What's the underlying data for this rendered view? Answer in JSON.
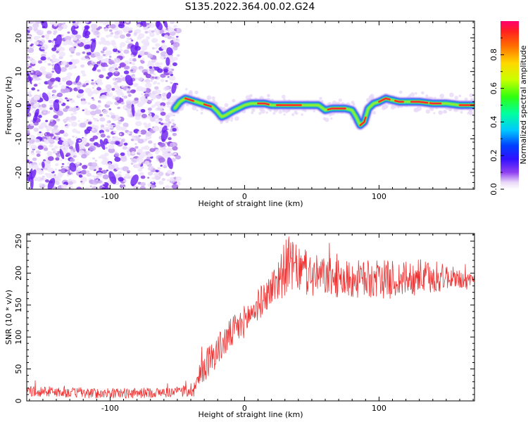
{
  "title": "S135.2022.364.00.02.G24",
  "chart_data": [
    {
      "type": "heatmap",
      "xlabel": "Height of straight line (km)",
      "ylabel": "Frequency (Hz)",
      "xlim": [
        -162,
        171
      ],
      "ylim": [
        -25,
        25
      ],
      "xticks": [
        -100,
        0,
        100
      ],
      "yticks": [
        -20,
        -10,
        0,
        10,
        20
      ],
      "grid": false,
      "colorbar": {
        "label": "Normalized spectral amplitude",
        "range": [
          0,
          1
        ],
        "ticks": [
          0.0,
          0.2,
          0.4,
          0.6,
          0.8
        ]
      },
      "noise_region_x": [
        -162,
        -52
      ],
      "ridge": {
        "x": [
          -52,
          -48,
          -44,
          -40,
          -36,
          -32,
          -28,
          -24,
          -20,
          -17,
          -14,
          -10,
          -5,
          0,
          5,
          10,
          15,
          20,
          25,
          30,
          40,
          50,
          55,
          60,
          65,
          70,
          75,
          80,
          83,
          86,
          89,
          92,
          96,
          100,
          105,
          110,
          115,
          120,
          130,
          140,
          150,
          160,
          171
        ],
        "y": [
          -1,
          1,
          2,
          1.5,
          1,
          0.5,
          0,
          -0.5,
          -2,
          -3.5,
          -3,
          -2,
          -1,
          0,
          0.5,
          0.5,
          0.5,
          0,
          0,
          0,
          0,
          0,
          0,
          -1.5,
          -1,
          -1,
          -1,
          -1.5,
          -3.5,
          -6,
          -5,
          -1,
          0.5,
          1,
          2,
          1.5,
          1,
          1,
          1,
          0.5,
          0.5,
          0,
          0
        ]
      }
    },
    {
      "type": "line",
      "xlabel": "Height of straight line (km)",
      "ylabel": "SNR (10 * v/v)",
      "xlim": [
        -162,
        171
      ],
      "ylim": [
        0,
        262
      ],
      "xticks": [
        -100,
        0,
        100
      ],
      "yticks": [
        0,
        50,
        100,
        150,
        200,
        250
      ],
      "grid": false,
      "color": "#ee3333",
      "series": [
        {
          "x": [
            -162,
            -150,
            -140,
            -130,
            -120,
            -110,
            -100,
            -90,
            -80,
            -70,
            -60,
            -50,
            -45,
            -40,
            -36,
            -32,
            -28,
            -24,
            -20,
            -16,
            -12,
            -8,
            -4,
            0,
            4,
            8,
            12,
            16,
            20,
            24,
            28,
            32,
            36,
            40,
            45,
            50,
            60,
            70,
            80,
            90,
            100,
            110,
            120,
            130,
            140,
            150,
            160,
            171
          ],
          "y": [
            15,
            15,
            14,
            13,
            12,
            12,
            12,
            12,
            12,
            13,
            13,
            14,
            15,
            17,
            25,
            45,
            60,
            70,
            80,
            90,
            100,
            110,
            115,
            125,
            135,
            145,
            155,
            165,
            175,
            190,
            200,
            215,
            210,
            205,
            200,
            195,
            195,
            190,
            190,
            190,
            190,
            190,
            190,
            195,
            190,
            195,
            190,
            185
          ],
          "jitter": [
            8,
            8,
            8,
            8,
            8,
            8,
            8,
            8,
            8,
            8,
            8,
            8,
            10,
            12,
            18,
            22,
            25,
            25,
            25,
            25,
            25,
            25,
            25,
            25,
            25,
            25,
            25,
            25,
            28,
            35,
            40,
            45,
            40,
            35,
            35,
            35,
            30,
            30,
            30,
            30,
            30,
            30,
            28,
            28,
            25,
            20,
            15,
            12
          ]
        }
      ]
    }
  ]
}
